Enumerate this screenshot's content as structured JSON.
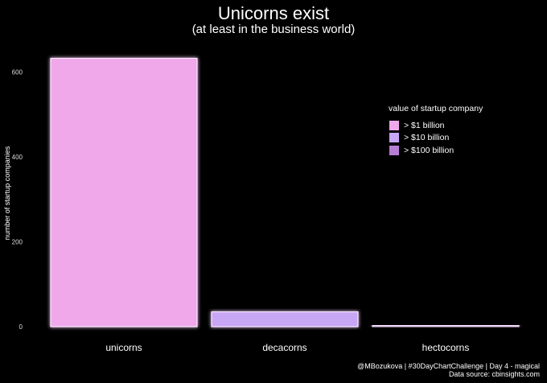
{
  "title": "Unicorns exist",
  "subtitle": "(at least in the business world)",
  "caption_line1": "@MBozukova | #30DayChartChallenge | Day 4 - magical",
  "caption_line2": "Data source: cbinsights.com",
  "chart_data": {
    "type": "bar",
    "title": "Unicorns exist",
    "subtitle": "(at least in the business world)",
    "xlabel": "",
    "ylabel": "number of startup companies",
    "categories": [
      "unicorns",
      "decacorns",
      "hectocorns"
    ],
    "values": [
      632,
      35,
      2
    ],
    "colors": [
      "#f0a8ea",
      "#c7a6f5",
      "#b77ed6"
    ],
    "ylim": [
      0,
      650
    ],
    "yticks": [
      0,
      200,
      400,
      600
    ],
    "grid": false,
    "legend": {
      "title": "value of startup company",
      "position": "right",
      "entries": [
        {
          "label": "> $1 billion",
          "color": "#f0a8ea"
        },
        {
          "label": "> $10 billion",
          "color": "#c7a6f5"
        },
        {
          "label": "> $100 billion",
          "color": "#b77ed6"
        }
      ]
    }
  }
}
